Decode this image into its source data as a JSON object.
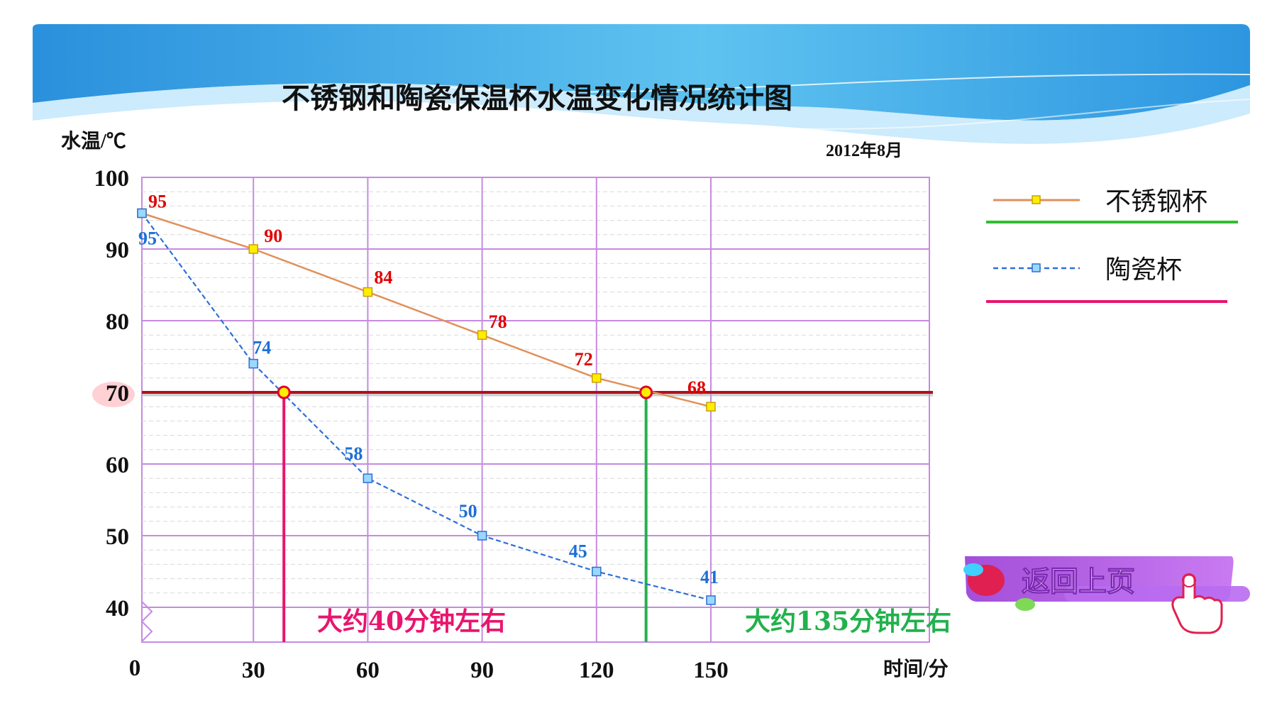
{
  "chart_data": {
    "type": "line",
    "title": "不锈钢和陶瓷保温杯水温变化情况统计图",
    "subtitle": "2012年8月",
    "ylabel": "水温/℃",
    "xlabel": "时间/分",
    "origin_label": "0",
    "x": [
      0,
      30,
      60,
      90,
      120,
      150
    ],
    "x_ticks": [
      "30",
      "60",
      "90",
      "120",
      "150"
    ],
    "y_ticks": [
      "100",
      "90",
      "80",
      "70",
      "60",
      "50",
      "40"
    ],
    "ylim": [
      40,
      100
    ],
    "y_axis_break": true,
    "grid": true,
    "legend_position": "right",
    "series": [
      {
        "name": "不锈钢杯",
        "values": [
          95,
          90,
          84,
          78,
          72,
          68
        ],
        "color": "#e0905a",
        "marker_color": "#ffee00",
        "style": "solid"
      },
      {
        "name": "陶瓷杯",
        "values": [
          95,
          74,
          58,
          50,
          45,
          41
        ],
        "color": "#2f6fd6",
        "marker_color": "#9ad8ff",
        "style": "dashed"
      }
    ],
    "annotations": {
      "reference_line": {
        "y": 70,
        "color": "#b01020"
      },
      "cross_a": {
        "x": 38,
        "y": 70,
        "text": "大约40分钟左右",
        "color": "#e8156e"
      },
      "cross_b": {
        "x": 133,
        "y": 70,
        "text": "大约135分钟左右",
        "color": "#22b14c"
      }
    }
  },
  "back_button": {
    "label": "返回上页"
  },
  "colors": {
    "header_blue": "#2c9be2",
    "grid": "#c58be0",
    "legend_line_a": "#2ec02e",
    "legend_line_b": "#e8156e"
  }
}
